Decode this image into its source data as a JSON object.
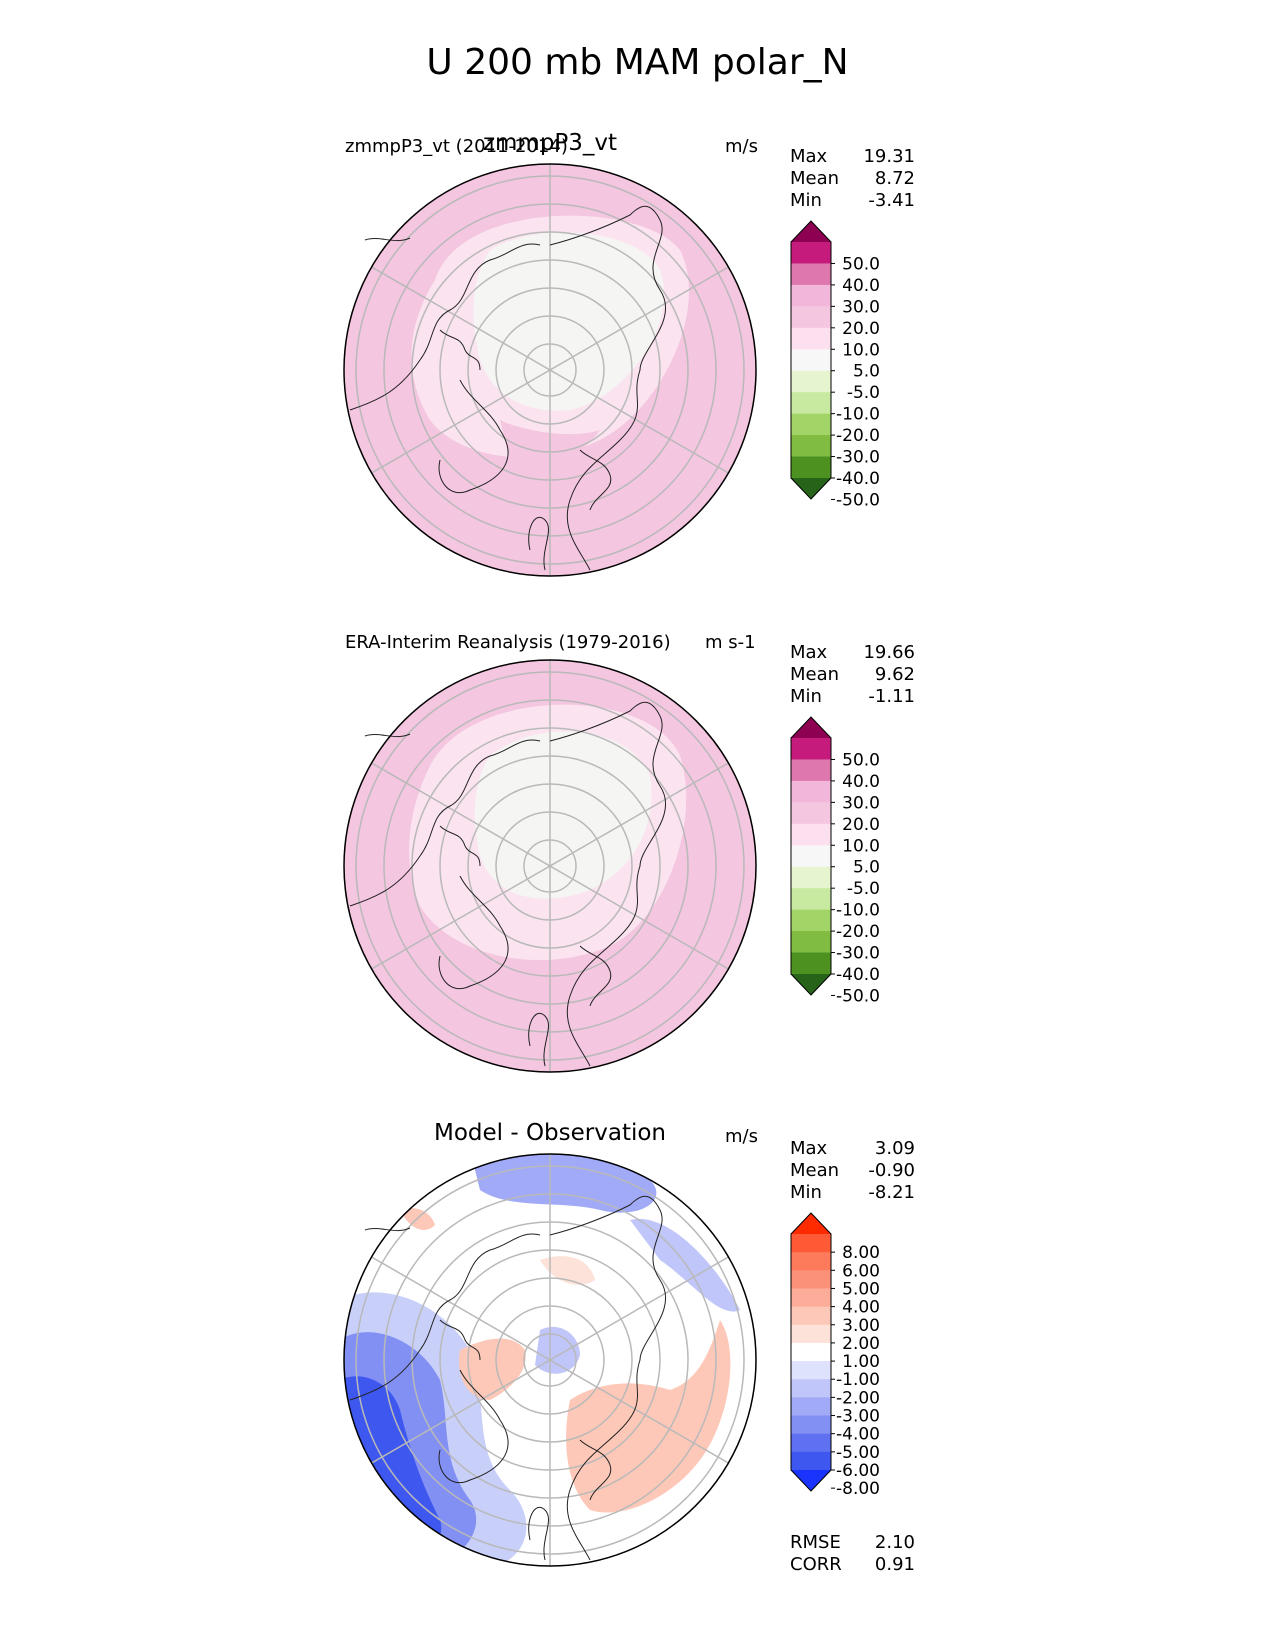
{
  "main_title": "U 200 mb MAM polar_N",
  "colors": {
    "land_outline": "#222222",
    "grid": "#b9b9b9"
  },
  "panels": [
    {
      "left_title": "zmmpP3_vt (2011-2014)",
      "center_title": "zmmpP3_vt",
      "units": "m/s",
      "stats": [
        {
          "label": "Max",
          "value": "19.31"
        },
        {
          "label": "Mean",
          "value": "8.72"
        },
        {
          "label": "Min",
          "value": "-3.41"
        }
      ],
      "colorbar": {
        "labels": [
          "50.0",
          "40.0",
          "30.0",
          "20.0",
          "10.0",
          "5.0",
          "-5.0",
          "-10.0",
          "-20.0",
          "-30.0",
          "-40.0",
          "-50.0"
        ],
        "colors": [
          "#8e0152",
          "#c51b7d",
          "#de77ae",
          "#f1b6da",
          "#f4c6e0",
          "#fde0ef",
          "#f7f7f7",
          "#e6f5d0",
          "#c7e9a0",
          "#a3d468",
          "#7fbc41",
          "#4d9221",
          "#276419"
        ]
      },
      "field": {
        "outer_color": "#f4c6e0",
        "middle_color": "#fbe4f0",
        "core_color": "#f5f5f3"
      }
    },
    {
      "left_title": "ERA-Interim Reanalysis (1979-2016)",
      "center_title": "",
      "units": "m s-1",
      "stats": [
        {
          "label": "Max",
          "value": "19.66"
        },
        {
          "label": "Mean",
          "value": "9.62"
        },
        {
          "label": "Min",
          "value": "-1.11"
        }
      ],
      "colorbar": {
        "labels": [
          "50.0",
          "40.0",
          "30.0",
          "20.0",
          "10.0",
          "5.0",
          "-5.0",
          "-10.0",
          "-20.0",
          "-30.0",
          "-40.0",
          "-50.0"
        ],
        "colors": [
          "#8e0152",
          "#c51b7d",
          "#de77ae",
          "#f1b6da",
          "#f4c6e0",
          "#fde0ef",
          "#f7f7f7",
          "#e6f5d0",
          "#c7e9a0",
          "#a3d468",
          "#7fbc41",
          "#4d9221",
          "#276419"
        ]
      },
      "field": {
        "outer_color": "#f4c6e0",
        "middle_color": "#fbe4f0",
        "core_color": "#f5f5f3"
      }
    },
    {
      "left_title": "",
      "center_title": "Model - Observation",
      "units": "m/s",
      "stats": [
        {
          "label": "Max",
          "value": "3.09"
        },
        {
          "label": "Mean",
          "value": "-0.90"
        },
        {
          "label": "Min",
          "value": "-8.21"
        }
      ],
      "colorbar": {
        "labels": [
          "8.00",
          "6.00",
          "5.00",
          "4.00",
          "3.00",
          "2.00",
          "1.00",
          "-1.00",
          "-2.00",
          "-3.00",
          "-4.00",
          "-5.00",
          "-6.00",
          "-8.00"
        ],
        "colors": [
          "#fe2a00",
          "#fe5a36",
          "#fd7a5a",
          "#fc917a",
          "#fcac99",
          "#fdc8b8",
          "#fde2d9",
          "#ffffff",
          "#dfe2fc",
          "#c0c6f9",
          "#a1aaf7",
          "#8290f4",
          "#5f71f1",
          "#3e57ef",
          "#1a34fd"
        ]
      },
      "field": {
        "outer_color": "#c8d0fa",
        "middle_color": "#ffffff",
        "core_color": "#ffffff"
      },
      "extra_stats": [
        {
          "label": "RMSE",
          "value": "2.10"
        },
        {
          "label": "CORR",
          "value": "0.91"
        }
      ]
    }
  ]
}
